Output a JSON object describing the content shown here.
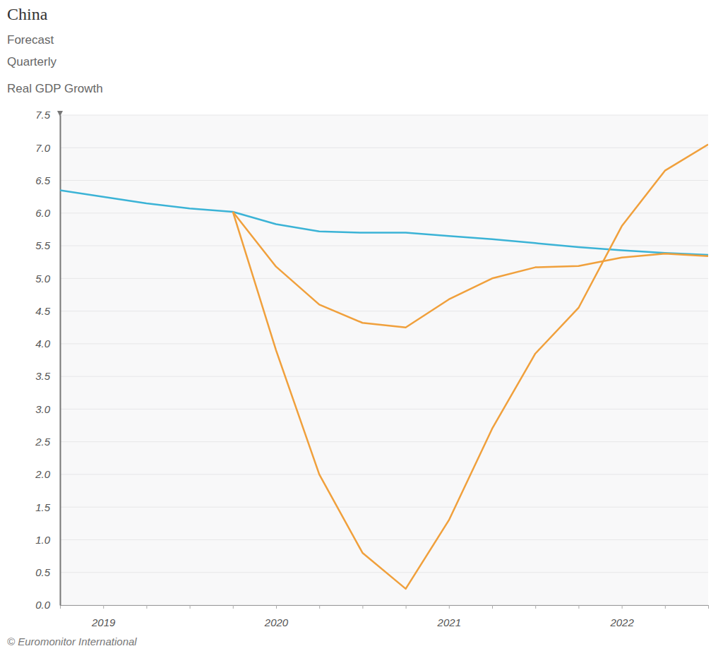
{
  "chart_data": {
    "type": "line",
    "title": "China",
    "subtitle": [
      "Forecast",
      "Quarterly",
      "Real GDP Growth"
    ],
    "source": "© Euromonitor International",
    "categories": [
      null,
      "2019",
      null,
      null,
      null,
      "2020",
      null,
      null,
      null,
      "2021",
      null,
      null,
      null,
      "2022",
      null,
      null
    ],
    "series": [
      {
        "color": "#3bb3d6",
        "values": [
          6.35,
          6.25,
          6.15,
          6.07,
          6.02,
          5.83,
          5.72,
          5.7,
          5.7,
          5.65,
          5.6,
          5.54,
          5.48,
          5.43,
          5.39,
          5.36
        ]
      },
      {
        "color": "#f0a03c",
        "values": [
          null,
          null,
          null,
          null,
          6.02,
          5.18,
          4.6,
          4.32,
          4.25,
          4.68,
          5.0,
          5.17,
          5.19,
          5.32,
          5.38,
          5.34
        ]
      },
      {
        "color": "#f0a03c",
        "values": [
          null,
          null,
          null,
          null,
          6.02,
          3.9,
          2.0,
          0.8,
          0.25,
          1.3,
          2.7,
          3.85,
          4.55,
          5.8,
          6.65,
          7.05
        ]
      }
    ],
    "ylim": [
      0,
      7.5
    ],
    "yticks": [
      {
        "value": 0,
        "label": "0.0"
      },
      0.5,
      {
        "value": 1,
        "label": "1.0"
      },
      1.5,
      {
        "value": 2,
        "label": "2.0"
      },
      2.5,
      {
        "value": 3,
        "label": "3.0"
      },
      3.5,
      {
        "value": 4,
        "label": "4.0"
      },
      4.5,
      {
        "value": 5,
        "label": "5.0"
      },
      5.5,
      {
        "value": 6,
        "label": "6.0"
      },
      6.5,
      {
        "value": 7,
        "label": "7.0"
      },
      7.5
    ],
    "grid": true
  }
}
